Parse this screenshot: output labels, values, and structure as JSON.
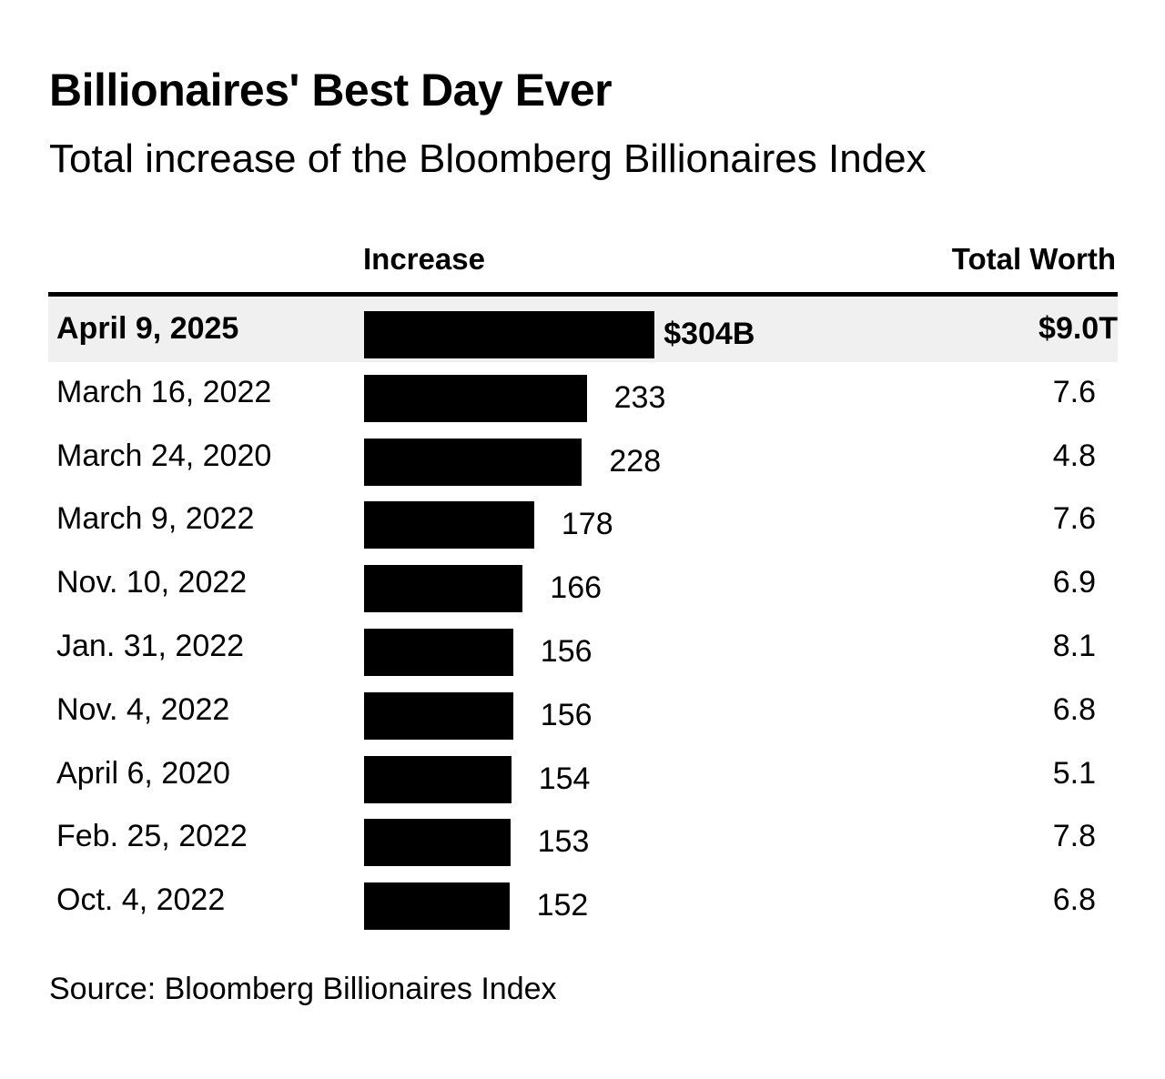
{
  "chart_data": {
    "type": "bar",
    "orientation": "horizontal",
    "title": "Billionaires' Best Day Ever",
    "subtitle": "Total increase of the Bloomberg Billionaires Index",
    "columns": {
      "increase": "Increase",
      "total_worth": "Total Worth"
    },
    "categories": [
      "April 9, 2025",
      "March 16, 2022",
      "March 24, 2020",
      "March 9, 2022",
      "Nov. 10, 2022",
      "Jan. 31, 2022",
      "Nov. 4, 2022",
      "April 6, 2020",
      "Feb. 25, 2022",
      "Oct. 4, 2022"
    ],
    "values": [
      304,
      233,
      228,
      178,
      166,
      156,
      156,
      154,
      153,
      152
    ],
    "value_labels": [
      "$304B",
      "233",
      "228",
      "178",
      "166",
      "156",
      "156",
      "154",
      "153",
      "152"
    ],
    "total_worth": [
      "$9.0T",
      "7.6",
      "4.8",
      "7.6",
      "6.9",
      "8.1",
      "6.8",
      "5.1",
      "7.8",
      "6.8"
    ],
    "highlight_index": 0,
    "bar_color": "#000000",
    "highlight_bg": "#f0f0f0",
    "source": "Source: Bloomberg Billionaires Index"
  }
}
